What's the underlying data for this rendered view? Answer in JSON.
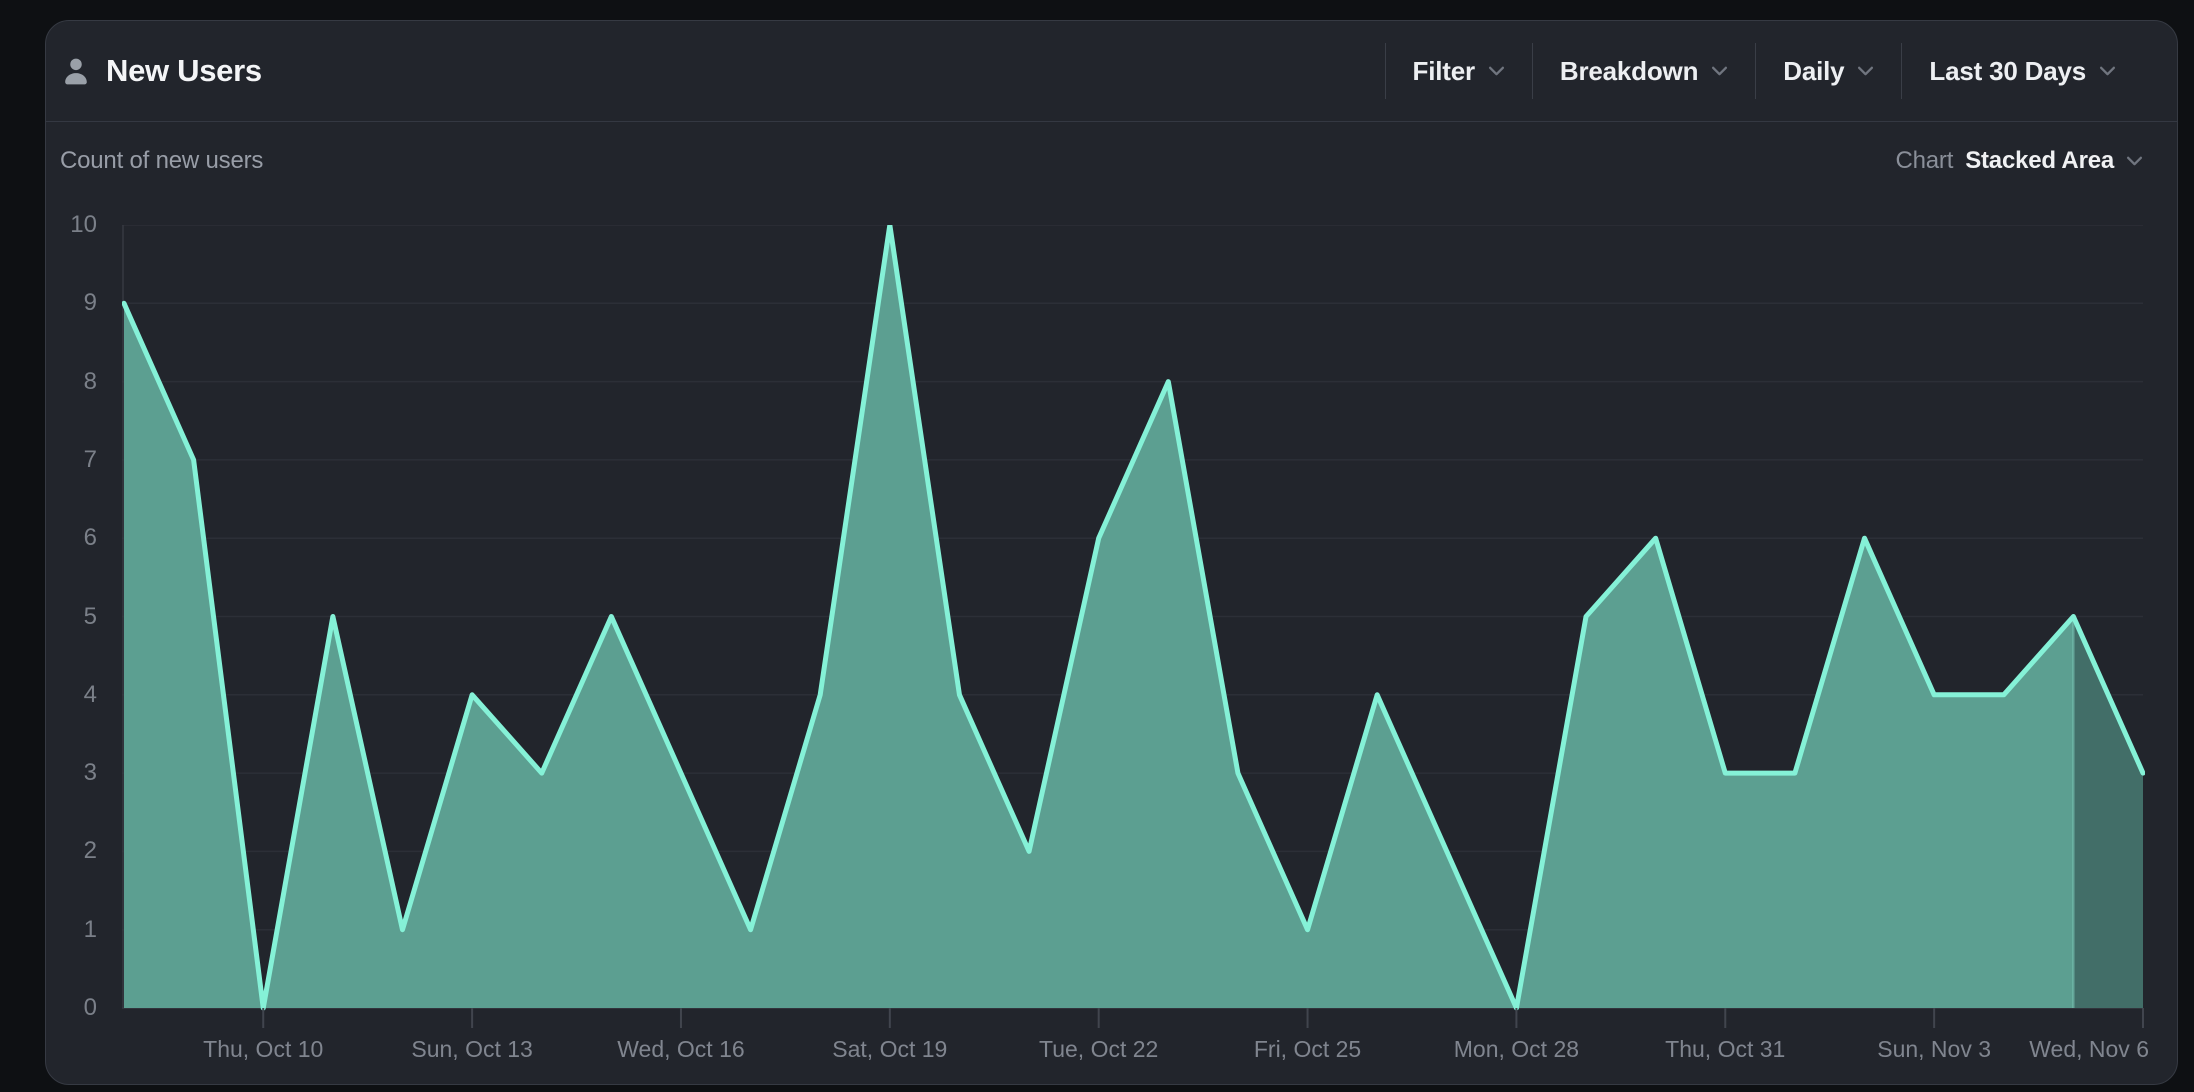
{
  "header": {
    "title": "New Users",
    "controls": [
      {
        "label": "Filter"
      },
      {
        "label": "Breakdown"
      },
      {
        "label": "Daily"
      },
      {
        "label": "Last 30 Days"
      }
    ]
  },
  "subheader": {
    "metric_label": "Count of new users",
    "chart_type_label": "Chart",
    "chart_type_value": "Stacked Area"
  },
  "chart_data": {
    "type": "area",
    "title": "Count of new users",
    "x": [
      "Oct 8",
      "Oct 9",
      "Oct 10",
      "Oct 11",
      "Oct 12",
      "Oct 13",
      "Oct 14",
      "Oct 15",
      "Oct 16",
      "Oct 17",
      "Oct 18",
      "Oct 19",
      "Oct 20",
      "Oct 21",
      "Oct 22",
      "Oct 23",
      "Oct 24",
      "Oct 25",
      "Oct 26",
      "Oct 27",
      "Oct 28",
      "Oct 29",
      "Oct 30",
      "Oct 31",
      "Nov 1",
      "Nov 2",
      "Nov 3",
      "Nov 4",
      "Nov 5",
      "Nov 6"
    ],
    "values": [
      9,
      7,
      0,
      5,
      1,
      4,
      3,
      5,
      3,
      1,
      4,
      10,
      4,
      2,
      6,
      8,
      3,
      1,
      4,
      2,
      0,
      5,
      6,
      3,
      3,
      6,
      4,
      4,
      5,
      3
    ],
    "x_tick_labels": [
      {
        "index": 2,
        "label": "Thu, Oct 10"
      },
      {
        "index": 5,
        "label": "Sun, Oct 13"
      },
      {
        "index": 8,
        "label": "Wed, Oct 16"
      },
      {
        "index": 11,
        "label": "Sat, Oct 19"
      },
      {
        "index": 14,
        "label": "Tue, Oct 22"
      },
      {
        "index": 17,
        "label": "Fri, Oct 25"
      },
      {
        "index": 20,
        "label": "Mon, Oct 28"
      },
      {
        "index": 23,
        "label": "Thu, Oct 31"
      },
      {
        "index": 26,
        "label": "Sun, Nov 3"
      },
      {
        "index": 29,
        "label": "Wed, Nov 6"
      }
    ],
    "y_ticks": [
      0,
      1,
      2,
      3,
      4,
      5,
      6,
      7,
      8,
      9,
      10
    ],
    "ylim": [
      0,
      10
    ],
    "grid": true,
    "legend": "none",
    "incomplete_from_index": 28,
    "colors": {
      "line": "#85F1D7",
      "fill": "#5C9F91",
      "fill_incomplete": "#426E68",
      "incomplete_boundary": "#7CC9B8",
      "gridline": "#2c2f37",
      "axis": "#363a42",
      "tick": "#41454e"
    }
  }
}
